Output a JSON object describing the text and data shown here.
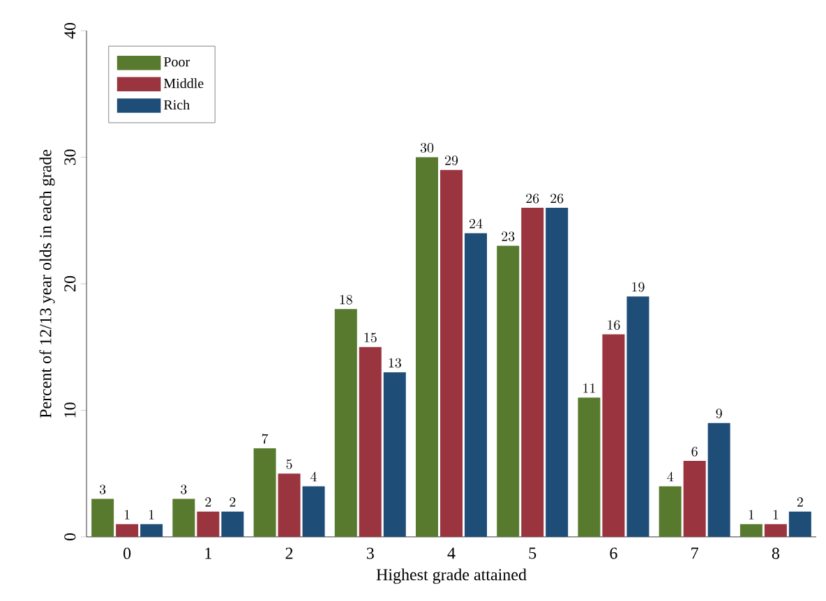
{
  "chart_data": {
    "type": "bar",
    "xlabel": "Highest grade attained",
    "ylabel": "Percent of 12/13 year olds in each grade",
    "categories": [
      "0",
      "1",
      "2",
      "3",
      "4",
      "5",
      "6",
      "7",
      "8"
    ],
    "series": [
      {
        "name": "Poor",
        "color": "#587a2e",
        "values": [
          3,
          3,
          7,
          18,
          30,
          23,
          11,
          4,
          1
        ]
      },
      {
        "name": "Middle",
        "color": "#9a343f",
        "values": [
          1,
          2,
          5,
          15,
          29,
          26,
          16,
          6,
          1
        ]
      },
      {
        "name": "Rich",
        "color": "#1e4d78",
        "values": [
          1,
          2,
          4,
          13,
          24,
          26,
          19,
          9,
          2
        ]
      }
    ],
    "ylim": [
      0,
      40
    ],
    "yticks": [
      0,
      10,
      20,
      30,
      40
    ],
    "data_labels": true,
    "legend": "top left",
    "grid": false
  }
}
